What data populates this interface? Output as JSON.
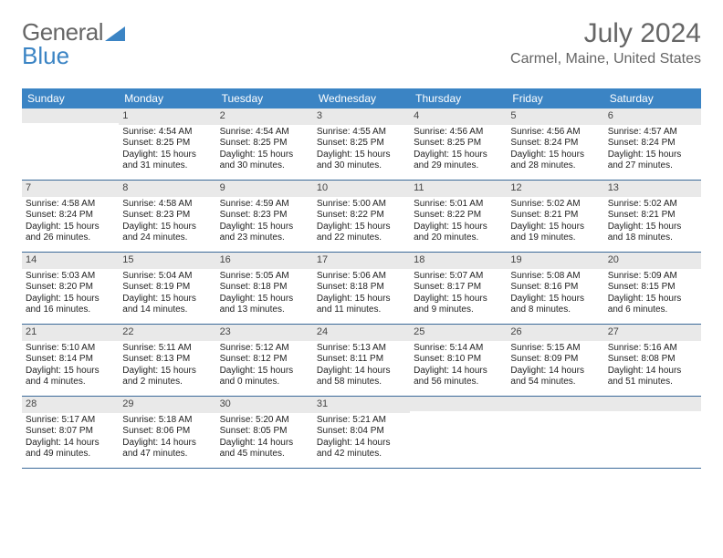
{
  "brand": {
    "part1": "General",
    "part2": "Blue"
  },
  "title": "July 2024",
  "location": "Carmel, Maine, United States",
  "colors": {
    "header_bg": "#3b84c4",
    "header_text": "#ffffff",
    "daynum_bg": "#e9e9e9",
    "text": "#222222",
    "title_color": "#666666",
    "row_border": "#3b6a99"
  },
  "day_names": [
    "Sunday",
    "Monday",
    "Tuesday",
    "Wednesday",
    "Thursday",
    "Friday",
    "Saturday"
  ],
  "weeks": [
    [
      {
        "empty": true
      },
      {
        "n": "1",
        "sunrise": "Sunrise: 4:54 AM",
        "sunset": "Sunset: 8:25 PM",
        "daylight": "Daylight: 15 hours and 31 minutes."
      },
      {
        "n": "2",
        "sunrise": "Sunrise: 4:54 AM",
        "sunset": "Sunset: 8:25 PM",
        "daylight": "Daylight: 15 hours and 30 minutes."
      },
      {
        "n": "3",
        "sunrise": "Sunrise: 4:55 AM",
        "sunset": "Sunset: 8:25 PM",
        "daylight": "Daylight: 15 hours and 30 minutes."
      },
      {
        "n": "4",
        "sunrise": "Sunrise: 4:56 AM",
        "sunset": "Sunset: 8:25 PM",
        "daylight": "Daylight: 15 hours and 29 minutes."
      },
      {
        "n": "5",
        "sunrise": "Sunrise: 4:56 AM",
        "sunset": "Sunset: 8:24 PM",
        "daylight": "Daylight: 15 hours and 28 minutes."
      },
      {
        "n": "6",
        "sunrise": "Sunrise: 4:57 AM",
        "sunset": "Sunset: 8:24 PM",
        "daylight": "Daylight: 15 hours and 27 minutes."
      }
    ],
    [
      {
        "n": "7",
        "sunrise": "Sunrise: 4:58 AM",
        "sunset": "Sunset: 8:24 PM",
        "daylight": "Daylight: 15 hours and 26 minutes."
      },
      {
        "n": "8",
        "sunrise": "Sunrise: 4:58 AM",
        "sunset": "Sunset: 8:23 PM",
        "daylight": "Daylight: 15 hours and 24 minutes."
      },
      {
        "n": "9",
        "sunrise": "Sunrise: 4:59 AM",
        "sunset": "Sunset: 8:23 PM",
        "daylight": "Daylight: 15 hours and 23 minutes."
      },
      {
        "n": "10",
        "sunrise": "Sunrise: 5:00 AM",
        "sunset": "Sunset: 8:22 PM",
        "daylight": "Daylight: 15 hours and 22 minutes."
      },
      {
        "n": "11",
        "sunrise": "Sunrise: 5:01 AM",
        "sunset": "Sunset: 8:22 PM",
        "daylight": "Daylight: 15 hours and 20 minutes."
      },
      {
        "n": "12",
        "sunrise": "Sunrise: 5:02 AM",
        "sunset": "Sunset: 8:21 PM",
        "daylight": "Daylight: 15 hours and 19 minutes."
      },
      {
        "n": "13",
        "sunrise": "Sunrise: 5:02 AM",
        "sunset": "Sunset: 8:21 PM",
        "daylight": "Daylight: 15 hours and 18 minutes."
      }
    ],
    [
      {
        "n": "14",
        "sunrise": "Sunrise: 5:03 AM",
        "sunset": "Sunset: 8:20 PM",
        "daylight": "Daylight: 15 hours and 16 minutes."
      },
      {
        "n": "15",
        "sunrise": "Sunrise: 5:04 AM",
        "sunset": "Sunset: 8:19 PM",
        "daylight": "Daylight: 15 hours and 14 minutes."
      },
      {
        "n": "16",
        "sunrise": "Sunrise: 5:05 AM",
        "sunset": "Sunset: 8:18 PM",
        "daylight": "Daylight: 15 hours and 13 minutes."
      },
      {
        "n": "17",
        "sunrise": "Sunrise: 5:06 AM",
        "sunset": "Sunset: 8:18 PM",
        "daylight": "Daylight: 15 hours and 11 minutes."
      },
      {
        "n": "18",
        "sunrise": "Sunrise: 5:07 AM",
        "sunset": "Sunset: 8:17 PM",
        "daylight": "Daylight: 15 hours and 9 minutes."
      },
      {
        "n": "19",
        "sunrise": "Sunrise: 5:08 AM",
        "sunset": "Sunset: 8:16 PM",
        "daylight": "Daylight: 15 hours and 8 minutes."
      },
      {
        "n": "20",
        "sunrise": "Sunrise: 5:09 AM",
        "sunset": "Sunset: 8:15 PM",
        "daylight": "Daylight: 15 hours and 6 minutes."
      }
    ],
    [
      {
        "n": "21",
        "sunrise": "Sunrise: 5:10 AM",
        "sunset": "Sunset: 8:14 PM",
        "daylight": "Daylight: 15 hours and 4 minutes."
      },
      {
        "n": "22",
        "sunrise": "Sunrise: 5:11 AM",
        "sunset": "Sunset: 8:13 PM",
        "daylight": "Daylight: 15 hours and 2 minutes."
      },
      {
        "n": "23",
        "sunrise": "Sunrise: 5:12 AM",
        "sunset": "Sunset: 8:12 PM",
        "daylight": "Daylight: 15 hours and 0 minutes."
      },
      {
        "n": "24",
        "sunrise": "Sunrise: 5:13 AM",
        "sunset": "Sunset: 8:11 PM",
        "daylight": "Daylight: 14 hours and 58 minutes."
      },
      {
        "n": "25",
        "sunrise": "Sunrise: 5:14 AM",
        "sunset": "Sunset: 8:10 PM",
        "daylight": "Daylight: 14 hours and 56 minutes."
      },
      {
        "n": "26",
        "sunrise": "Sunrise: 5:15 AM",
        "sunset": "Sunset: 8:09 PM",
        "daylight": "Daylight: 14 hours and 54 minutes."
      },
      {
        "n": "27",
        "sunrise": "Sunrise: 5:16 AM",
        "sunset": "Sunset: 8:08 PM",
        "daylight": "Daylight: 14 hours and 51 minutes."
      }
    ],
    [
      {
        "n": "28",
        "sunrise": "Sunrise: 5:17 AM",
        "sunset": "Sunset: 8:07 PM",
        "daylight": "Daylight: 14 hours and 49 minutes."
      },
      {
        "n": "29",
        "sunrise": "Sunrise: 5:18 AM",
        "sunset": "Sunset: 8:06 PM",
        "daylight": "Daylight: 14 hours and 47 minutes."
      },
      {
        "n": "30",
        "sunrise": "Sunrise: 5:20 AM",
        "sunset": "Sunset: 8:05 PM",
        "daylight": "Daylight: 14 hours and 45 minutes."
      },
      {
        "n": "31",
        "sunrise": "Sunrise: 5:21 AM",
        "sunset": "Sunset: 8:04 PM",
        "daylight": "Daylight: 14 hours and 42 minutes."
      },
      {
        "empty": true
      },
      {
        "empty": true
      },
      {
        "empty": true
      }
    ]
  ]
}
